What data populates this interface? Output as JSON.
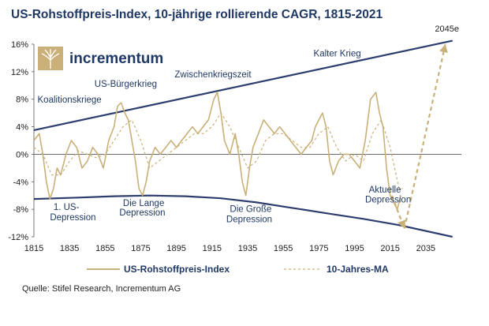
{
  "chart_data": {
    "type": "line",
    "title": "US-Rohstoffpreis-Index, 10-jährige rollierende CAGR, 1815-2021",
    "xlim": [
      1815,
      2055
    ],
    "ylim": [
      -12,
      16
    ],
    "x_ticks": [
      "1815",
      "1835",
      "1855",
      "1875",
      "1895",
      "1915",
      "1935",
      "1955",
      "1975",
      "1995",
      "2015",
      "2035"
    ],
    "y_ticks": [
      "16%",
      "12%",
      "8%",
      "4%",
      "0%",
      "-4%",
      "-8%",
      "-12%"
    ],
    "y_tick_values": [
      16,
      12,
      8,
      4,
      0,
      -4,
      -8,
      -12
    ],
    "series": [
      {
        "name": "US-Rohstoffpreis-Index",
        "color": "#c9b078",
        "x": [
          1815,
          1818,
          1820,
          1822,
          1824,
          1826,
          1828,
          1830,
          1833,
          1836,
          1839,
          1842,
          1845,
          1848,
          1851,
          1854,
          1857,
          1860,
          1862,
          1864,
          1866,
          1868,
          1870,
          1872,
          1874,
          1876,
          1878,
          1880,
          1883,
          1886,
          1889,
          1892,
          1895,
          1898,
          1901,
          1904,
          1907,
          1910,
          1913,
          1916,
          1918,
          1920,
          1922,
          1925,
          1928,
          1930,
          1932,
          1934,
          1936,
          1938,
          1941,
          1944,
          1947,
          1950,
          1953,
          1956,
          1959,
          1962,
          1965,
          1968,
          1971,
          1973,
          1975,
          1977,
          1979,
          1981,
          1983,
          1986,
          1989,
          1992,
          1995,
          1998,
          2001,
          2004,
          2007,
          2009,
          2011,
          2013,
          2015,
          2017,
          2019,
          2021
        ],
        "y": [
          2,
          3,
          0,
          -4,
          -6.5,
          -5,
          -2,
          -3,
          0,
          2,
          1,
          -2,
          -1,
          1,
          0,
          -2,
          2,
          4,
          7,
          7.5,
          6,
          5,
          2,
          -1,
          -5,
          -6,
          -4,
          -1,
          1,
          0,
          1,
          2,
          1,
          2,
          3,
          4,
          3,
          4,
          5,
          8,
          9,
          6,
          2,
          0,
          3,
          0,
          -4,
          -6,
          -2,
          1,
          3,
          5,
          4,
          3,
          4,
          3,
          2,
          1,
          0,
          1,
          2,
          4,
          5,
          6,
          4,
          -1,
          -3,
          -1,
          0,
          0,
          -1,
          -2,
          2,
          8,
          9,
          6,
          4,
          -2,
          -6,
          -7,
          -8,
          -6
        ]
      },
      {
        "name": "10-Jahres-MA",
        "color": "#c9b078",
        "dashed": true,
        "x": [
          1815,
          1820,
          1825,
          1830,
          1835,
          1840,
          1845,
          1850,
          1855,
          1860,
          1865,
          1870,
          1875,
          1880,
          1885,
          1890,
          1895,
          1900,
          1905,
          1910,
          1915,
          1920,
          1925,
          1930,
          1935,
          1940,
          1945,
          1950,
          1955,
          1960,
          1965,
          1970,
          1975,
          1980,
          1985,
          1990,
          1995,
          2000,
          2005,
          2010,
          2015,
          2020,
          2022
        ],
        "y": [
          1,
          0,
          -3,
          -3,
          -1,
          0.5,
          0,
          -0.5,
          0,
          2,
          4,
          5,
          2,
          -2,
          -1,
          0,
          1,
          2,
          3,
          3,
          4,
          6,
          4,
          1,
          -2,
          -1,
          2,
          3,
          3,
          2,
          1,
          1,
          3,
          4,
          1,
          -1,
          0,
          -1,
          3,
          5,
          1,
          -5,
          -5
        ]
      }
    ],
    "envelope": {
      "upper": {
        "x": [
          1815,
          2050
        ],
        "y": [
          3.5,
          16.5
        ]
      },
      "lower": {
        "x": [
          1815,
          1840,
          1860,
          1880,
          1900,
          1920,
          1940,
          1960,
          1980,
          2000,
          2020,
          2050
        ],
        "y": [
          -6.5,
          -6.3,
          -6.1,
          -6.0,
          -6.1,
          -6.4,
          -7.0,
          -7.8,
          -8.6,
          -9.4,
          -10.3,
          -12
        ]
      }
    },
    "projection": {
      "label": "2045e",
      "down": {
        "x": [
          2016,
          2023
        ],
        "y": [
          -6,
          -10.8
        ]
      },
      "up": {
        "x": [
          2023,
          2046
        ],
        "y": [
          -10.8,
          16
        ]
      }
    },
    "annotations": [
      {
        "text": "Koalitionskriege",
        "x": 1817,
        "y": 7.5
      },
      {
        "text": "US-Bürgerkrieg",
        "x": 1849,
        "y": 9.8
      },
      {
        "text": "Zwischenkriegszeit",
        "x": 1894,
        "y": 11.2
      },
      {
        "text": "Kalter Krieg",
        "x": 1972,
        "y": 14.2
      },
      {
        "text": "1. US-",
        "x": 1826,
        "y": -8.1
      },
      {
        "text": "Depression",
        "x": 1824,
        "y": -9.6
      },
      {
        "text": "Die Lange",
        "x": 1865,
        "y": -7.5
      },
      {
        "text": "Depression",
        "x": 1863,
        "y": -8.9
      },
      {
        "text": "Die Große",
        "x": 1925,
        "y": -8.4
      },
      {
        "text": "Depression",
        "x": 1923,
        "y": -9.9
      },
      {
        "text": "Aktuelle",
        "x": 2003,
        "y": -5.6
      },
      {
        "text": "Depression",
        "x": 2001,
        "y": -7.0
      }
    ],
    "legend_placement": "bottom",
    "grid": false
  },
  "logo": {
    "text": "incrementum"
  },
  "source": "Quelle: Stifel Research, Incrementum AG"
}
